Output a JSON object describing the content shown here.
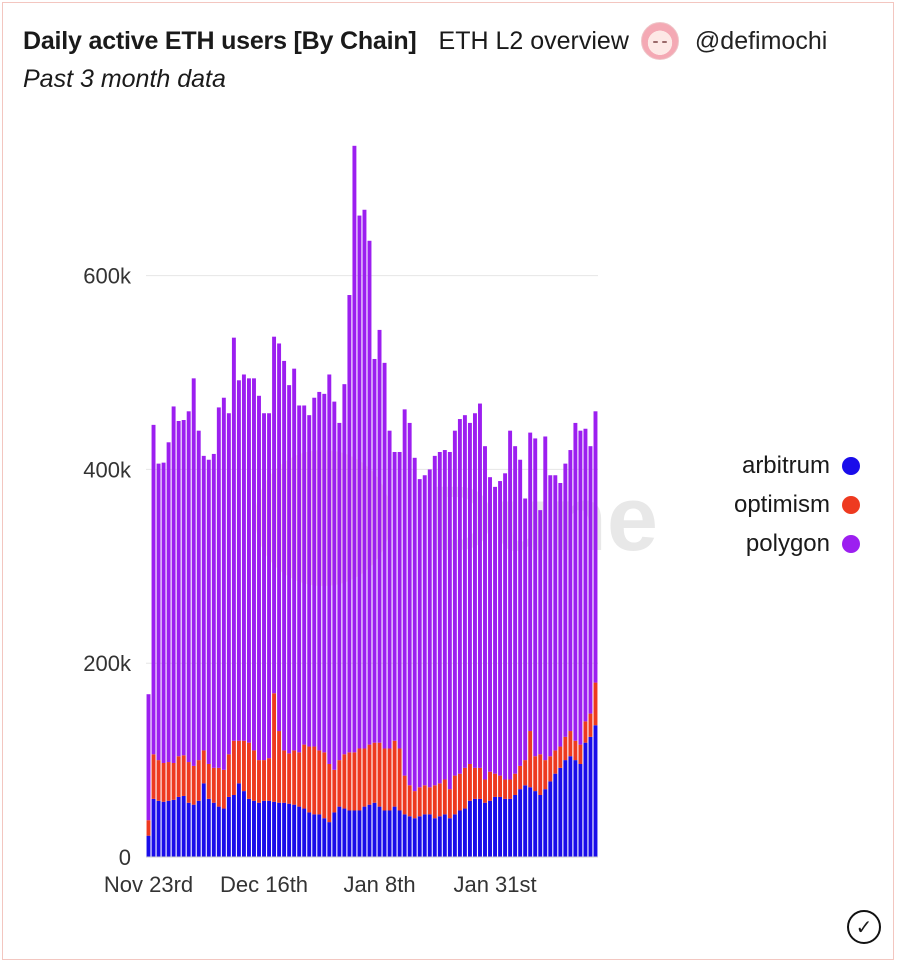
{
  "header": {
    "title": "Daily active ETH users [By Chain]",
    "dashboard_link": "ETH L2 overview",
    "author": "@defimochi",
    "description": "Past 3 month data"
  },
  "watermark": "Dune",
  "chart_data": {
    "type": "bar",
    "stacked": true,
    "xlabel": "",
    "ylabel": "",
    "ylim": [
      0,
      740000
    ],
    "yticks": [
      0,
      200000,
      400000,
      600000
    ],
    "ytick_labels": [
      "0",
      "200k",
      "400k",
      "600k"
    ],
    "xtick_labels": [
      {
        "index": 0,
        "label": "Nov 23rd"
      },
      {
        "index": 23,
        "label": "Dec 16th"
      },
      {
        "index": 46,
        "label": "Jan 8th"
      },
      {
        "index": 69,
        "label": "Jan 31st"
      }
    ],
    "colors": {
      "arbitrum": "#1a0dea",
      "optimism": "#ee3a20",
      "polygon": "#9c1ff0"
    },
    "series": [
      {
        "name": "arbitrum",
        "values": [
          22000,
          60000,
          58000,
          57000,
          58000,
          59000,
          62000,
          63000,
          56000,
          54000,
          58000,
          76000,
          60000,
          56000,
          52000,
          50000,
          62000,
          64000,
          76000,
          68000,
          60000,
          58000,
          56000,
          58000,
          58000,
          57000,
          56000,
          56000,
          55000,
          54000,
          52000,
          50000,
          46000,
          44000,
          44000,
          40000,
          36000,
          46000,
          52000,
          50000,
          48000,
          48000,
          48000,
          52000,
          54000,
          56000,
          52000,
          48000,
          48000,
          52000,
          48000,
          44000,
          42000,
          40000,
          42000,
          44000,
          44000,
          40000,
          42000,
          44000,
          40000,
          44000,
          48000,
          50000,
          58000,
          60000,
          60000,
          56000,
          58000,
          62000,
          62000,
          60000,
          60000,
          64000,
          70000,
          74000,
          72000,
          68000,
          64000,
          70000,
          78000,
          86000,
          92000,
          100000,
          104000,
          100000,
          96000,
          118000,
          124000,
          136000
        ]
      },
      {
        "name": "optimism",
        "values": [
          16000,
          46000,
          42000,
          40000,
          40000,
          38000,
          42000,
          42000,
          42000,
          40000,
          42000,
          34000,
          36000,
          36000,
          40000,
          40000,
          44000,
          56000,
          44000,
          52000,
          58000,
          52000,
          44000,
          42000,
          44000,
          112000,
          74000,
          54000,
          52000,
          56000,
          56000,
          66000,
          68000,
          70000,
          66000,
          68000,
          60000,
          44000,
          48000,
          56000,
          60000,
          60000,
          64000,
          60000,
          62000,
          62000,
          66000,
          64000,
          64000,
          68000,
          64000,
          40000,
          32000,
          28000,
          30000,
          30000,
          28000,
          34000,
          34000,
          36000,
          30000,
          40000,
          38000,
          42000,
          38000,
          32000,
          32000,
          24000,
          30000,
          24000,
          22000,
          20000,
          20000,
          22000,
          24000,
          26000,
          58000,
          36000,
          42000,
          30000,
          26000,
          24000,
          22000,
          24000,
          26000,
          20000,
          20000,
          22000,
          24000,
          44000
        ]
      },
      {
        "name": "polygon",
        "values": [
          130000,
          340000,
          306000,
          310000,
          330000,
          368000,
          346000,
          346000,
          362000,
          400000,
          340000,
          304000,
          314000,
          324000,
          372000,
          384000,
          352000,
          416000,
          372000,
          378000,
          376000,
          384000,
          376000,
          358000,
          356000,
          368000,
          400000,
          402000,
          380000,
          394000,
          358000,
          350000,
          342000,
          360000,
          370000,
          370000,
          402000,
          380000,
          348000,
          382000,
          472000,
          626000,
          550000,
          556000,
          520000,
          396000,
          426000,
          398000,
          328000,
          298000,
          306000,
          378000,
          374000,
          344000,
          318000,
          320000,
          328000,
          340000,
          342000,
          340000,
          348000,
          356000,
          366000,
          364000,
          352000,
          366000,
          376000,
          344000,
          304000,
          296000,
          304000,
          316000,
          360000,
          338000,
          316000,
          270000,
          308000,
          328000,
          252000,
          334000,
          290000,
          284000,
          272000,
          282000,
          290000,
          328000,
          324000,
          302000,
          276000,
          280000
        ]
      }
    ]
  }
}
